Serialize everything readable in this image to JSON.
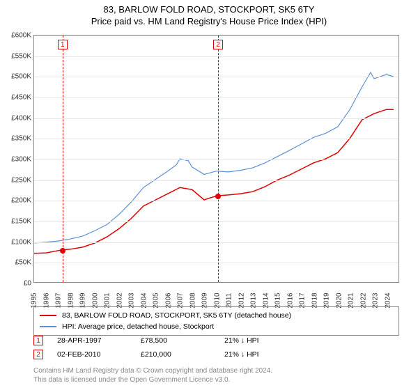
{
  "title": {
    "main": "83, BARLOW FOLD ROAD, STOCKPORT, SK5 6TY",
    "sub": "Price paid vs. HM Land Registry's House Price Index (HPI)"
  },
  "chart": {
    "type": "line",
    "background_color": "#ffffff",
    "grid_color": "#e6e6e6",
    "border_color": "#888888",
    "xlim": [
      1995,
      2025
    ],
    "ylim": [
      0,
      600000
    ],
    "y_ticks": [
      0,
      50000,
      100000,
      150000,
      200000,
      250000,
      300000,
      350000,
      400000,
      450000,
      500000,
      550000,
      600000
    ],
    "y_tick_labels": [
      "£0",
      "£50K",
      "£100K",
      "£150K",
      "£200K",
      "£250K",
      "£300K",
      "£350K",
      "£400K",
      "£450K",
      "£500K",
      "£550K",
      "£600K"
    ],
    "x_ticks": [
      1995,
      1996,
      1997,
      1998,
      1999,
      2000,
      2001,
      2002,
      2003,
      2004,
      2005,
      2006,
      2007,
      2008,
      2009,
      2010,
      2011,
      2012,
      2013,
      2014,
      2015,
      2016,
      2017,
      2018,
      2019,
      2020,
      2021,
      2022,
      2023,
      2024
    ],
    "series": {
      "property": {
        "label": "83, BARLOW FOLD ROAD, STOCKPORT, SK5 6TY (detached house)",
        "color": "#e00000",
        "line_width": 1.5,
        "points": [
          [
            1995,
            70000
          ],
          [
            1996,
            71000
          ],
          [
            1997.33,
            78500
          ],
          [
            1998,
            80000
          ],
          [
            1999,
            85000
          ],
          [
            2000,
            95000
          ],
          [
            2001,
            110000
          ],
          [
            2002,
            130000
          ],
          [
            2003,
            155000
          ],
          [
            2004,
            185000
          ],
          [
            2005,
            200000
          ],
          [
            2006,
            215000
          ],
          [
            2007,
            230000
          ],
          [
            2008,
            225000
          ],
          [
            2009,
            200000
          ],
          [
            2009.5,
            205000
          ],
          [
            2010.09,
            210000
          ],
          [
            2011,
            212000
          ],
          [
            2012,
            215000
          ],
          [
            2013,
            220000
          ],
          [
            2014,
            232000
          ],
          [
            2015,
            248000
          ],
          [
            2016,
            260000
          ],
          [
            2017,
            275000
          ],
          [
            2018,
            290000
          ],
          [
            2019,
            300000
          ],
          [
            2020,
            315000
          ],
          [
            2021,
            350000
          ],
          [
            2022,
            395000
          ],
          [
            2023,
            410000
          ],
          [
            2024,
            420000
          ],
          [
            2024.6,
            420000
          ]
        ]
      },
      "hpi": {
        "label": "HPI: Average price, detached house, Stockport",
        "color": "#5b8fd6",
        "line_width": 1.2,
        "points": [
          [
            1995,
            95000
          ],
          [
            1996,
            97000
          ],
          [
            1997,
            100000
          ],
          [
            1998,
            105000
          ],
          [
            1999,
            112000
          ],
          [
            2000,
            125000
          ],
          [
            2001,
            140000
          ],
          [
            2002,
            165000
          ],
          [
            2003,
            195000
          ],
          [
            2004,
            230000
          ],
          [
            2005,
            250000
          ],
          [
            2006,
            270000
          ],
          [
            2006.7,
            285000
          ],
          [
            2007,
            300000
          ],
          [
            2007.7,
            295000
          ],
          [
            2008,
            280000
          ],
          [
            2009,
            262000
          ],
          [
            2010,
            270000
          ],
          [
            2011,
            268000
          ],
          [
            2012,
            272000
          ],
          [
            2013,
            278000
          ],
          [
            2014,
            290000
          ],
          [
            2015,
            305000
          ],
          [
            2016,
            320000
          ],
          [
            2017,
            336000
          ],
          [
            2018,
            352000
          ],
          [
            2019,
            362000
          ],
          [
            2020,
            378000
          ],
          [
            2021,
            420000
          ],
          [
            2022,
            475000
          ],
          [
            2022.7,
            510000
          ],
          [
            2023,
            495000
          ],
          [
            2024,
            505000
          ],
          [
            2024.6,
            500000
          ]
        ]
      }
    },
    "sales_markers": [
      {
        "num": "1",
        "x": 1997.33,
        "price": 78500
      },
      {
        "num": "2",
        "x": 2010.09,
        "price": 210000
      }
    ]
  },
  "sales_table": [
    {
      "num": "1",
      "date": "28-APR-1997",
      "price": "£78,500",
      "delta": "21% ↓ HPI"
    },
    {
      "num": "2",
      "date": "02-FEB-2010",
      "price": "£210,000",
      "delta": "21% ↓ HPI"
    }
  ],
  "footer": {
    "line1": "Contains HM Land Registry data © Crown copyright and database right 2024.",
    "line2": "This data is licensed under the Open Government Licence v3.0."
  }
}
